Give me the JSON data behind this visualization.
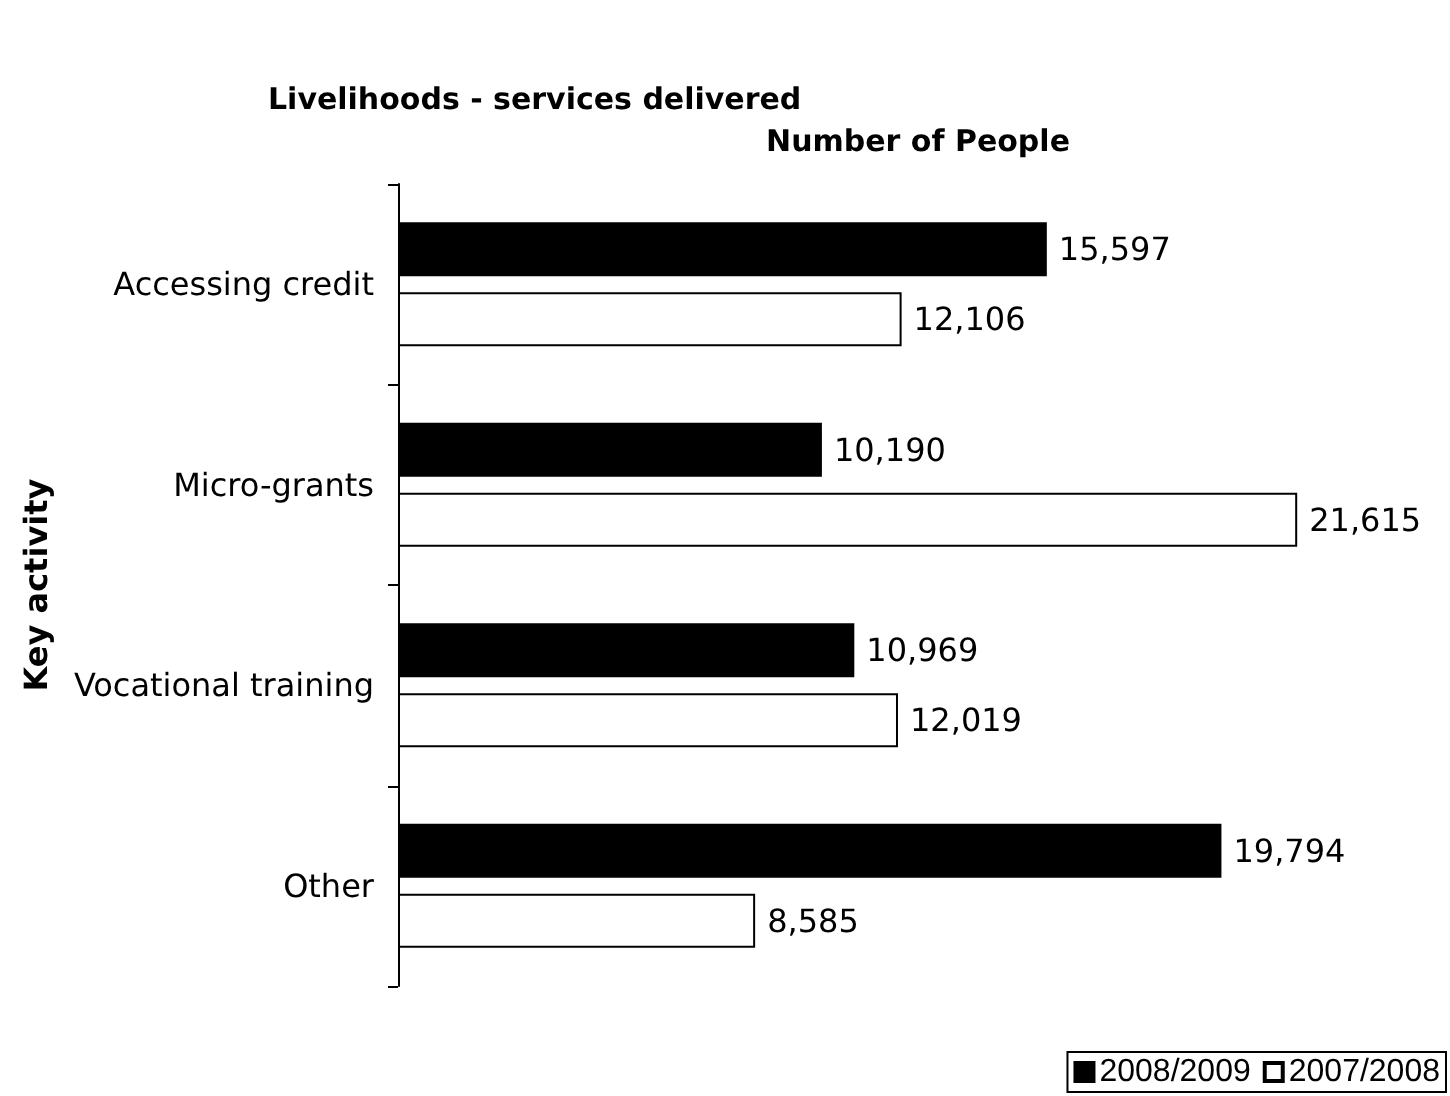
{
  "chart_data": {
    "type": "bar",
    "orientation": "horizontal",
    "title": "Livelihoods - services delivered",
    "xlabel": "Number of People",
    "ylabel": "Key activity",
    "categories": [
      "Accessing credit",
      "Micro-grants",
      "Vocational training",
      "Other"
    ],
    "series": [
      {
        "name": "2008/2009",
        "color": "#000000",
        "values": [
          15597,
          10190,
          10969,
          19794
        ],
        "value_labels": [
          "15,597",
          "10,190",
          "10,969",
          "19,794"
        ]
      },
      {
        "name": "2007/2008",
        "color": "#ffffff",
        "values": [
          12106,
          21615,
          12019,
          8585
        ],
        "value_labels": [
          "12,106",
          "21,615",
          "12,019",
          "8,585"
        ]
      }
    ],
    "grid": false,
    "legend": "bottom right",
    "tick_labels": "y"
  }
}
